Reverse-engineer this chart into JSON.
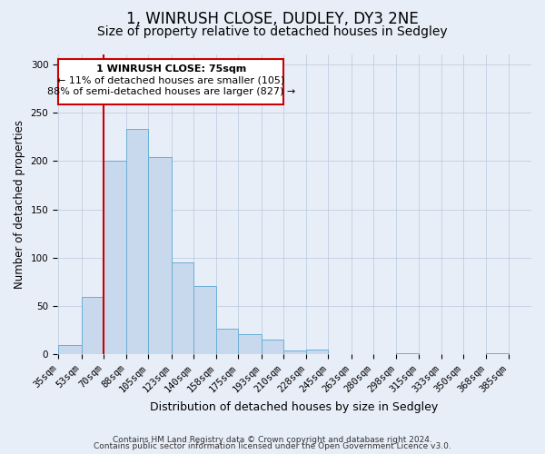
{
  "title": "1, WINRUSH CLOSE, DUDLEY, DY3 2NE",
  "subtitle": "Size of property relative to detached houses in Sedgley",
  "xlabel": "Distribution of detached houses by size in Sedgley",
  "ylabel": "Number of detached properties",
  "bar_labels": [
    "35sqm",
    "53sqm",
    "70sqm",
    "88sqm",
    "105sqm",
    "123sqm",
    "140sqm",
    "158sqm",
    "175sqm",
    "193sqm",
    "210sqm",
    "228sqm",
    "245sqm",
    "263sqm",
    "280sqm",
    "298sqm",
    "315sqm",
    "333sqm",
    "350sqm",
    "368sqm",
    "385sqm"
  ],
  "bar_values": [
    10,
    59,
    200,
    233,
    204,
    95,
    71,
    27,
    21,
    15,
    4,
    5,
    0,
    0,
    0,
    1,
    0,
    0,
    0,
    1,
    0
  ],
  "bar_color": "#c8d9ee",
  "bar_edge_color": "#6aaed6",
  "property_label": "1 WINRUSH CLOSE: 75sqm",
  "annotation_line1": "← 11% of detached houses are smaller (105)",
  "annotation_line2": "88% of semi-detached houses are larger (827) →",
  "vline_color": "#cc0000",
  "box_color": "#ffffff",
  "box_edge_color": "#cc0000",
  "ylim": [
    0,
    310
  ],
  "yticks": [
    0,
    50,
    100,
    150,
    200,
    250,
    300
  ],
  "footer1": "Contains HM Land Registry data © Crown copyright and database right 2024.",
  "footer2": "Contains public sector information licensed under the Open Government Licence v3.0.",
  "background_color": "#e8eef8",
  "plot_bg_color": "#e8eef8",
  "title_fontsize": 12,
  "subtitle_fontsize": 10,
  "tick_fontsize": 7.5,
  "ylabel_fontsize": 8.5,
  "xlabel_fontsize": 9,
  "annotation_fontsize": 8,
  "footer_fontsize": 6.5
}
